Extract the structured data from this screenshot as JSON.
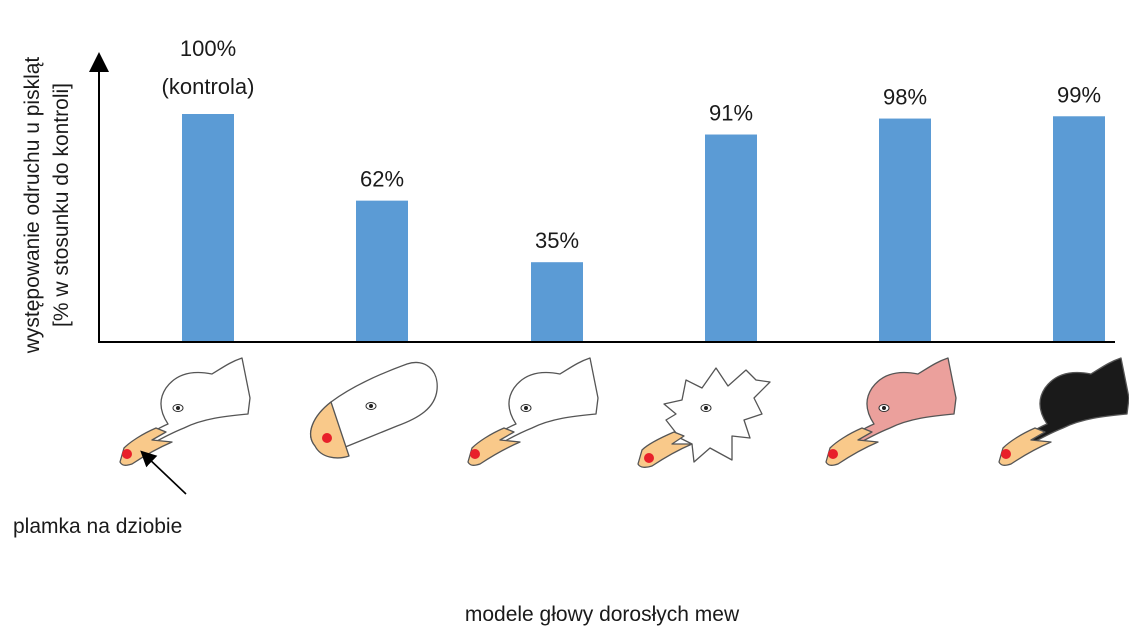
{
  "chart_data": {
    "type": "bar",
    "categories": [
      "",
      "",
      "",
      "",
      "",
      ""
    ],
    "values": [
      100,
      62,
      35,
      91,
      98,
      99
    ],
    "data_labels": [
      "100%",
      "62%",
      "35%",
      "91%",
      "98%",
      "99%"
    ],
    "control_note": "(kontrola)",
    "ylabel_line1": "występowanie odruchu u piskląt",
    "ylabel_line2": "[% w stosunku do kontroli]",
    "xlabel": "modele głowy dorosłych mew",
    "annotation": "plamka na dziobie",
    "ylim": [
      0,
      100
    ],
    "grid": false,
    "bar_color": "#5b9bd5",
    "models": [
      {
        "shape": "realistic-gull-head",
        "head_color": "#ffffff",
        "beak_color": "#f9c98a",
        "spot_color": "#e8202a"
      },
      {
        "shape": "oval-simplified-head",
        "head_color": "#ffffff",
        "beak_color": "#f9c98a",
        "spot_color": "#e8202a"
      },
      {
        "shape": "realistic-gull-head",
        "head_color": "#ffffff",
        "beak_color": "#f9c98a",
        "spot_color": "#e8202a"
      },
      {
        "shape": "spiky-irregular-head",
        "head_color": "#ffffff",
        "beak_color": "#f9c98a",
        "spot_color": "#e8202a"
      },
      {
        "shape": "realistic-gull-head",
        "head_color": "#eba09c",
        "beak_color": "#f9c98a",
        "spot_color": "#e8202a"
      },
      {
        "shape": "realistic-gull-head",
        "head_color": "#1a1a1a",
        "beak_color": "#f9c98a",
        "spot_color": "#e8202a"
      }
    ]
  }
}
